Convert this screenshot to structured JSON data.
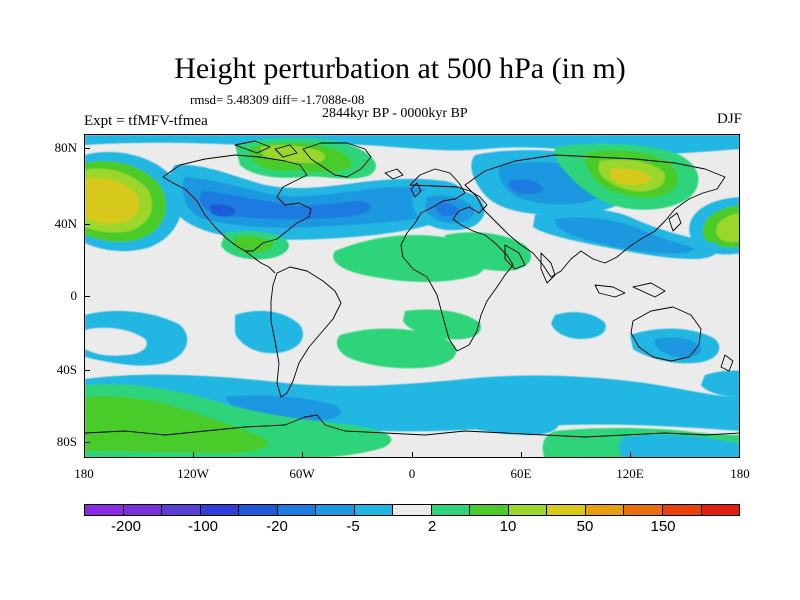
{
  "title": "Height perturbation at 500 hPa (in m)",
  "stats": "rmsd= 5.48309 diff= -1.7088e-08",
  "period": "2844kyr BP - 0000kyr BP",
  "experiment": "Expt = tfMFV-tfmea",
  "season": "DJF",
  "y_ticks": [
    "80N",
    "40N",
    "0",
    "40S",
    "80S"
  ],
  "x_ticks": [
    "180",
    "120W",
    "60W",
    "0",
    "60E",
    "120E",
    "180"
  ],
  "colorbar": {
    "colors": [
      "#8a2be2",
      "#7b30d8",
      "#5a3fd0",
      "#2f3fd8",
      "#1e5ad8",
      "#1f7ae0",
      "#1f98e0",
      "#21b6e2",
      "#ebebeb",
      "#2ed47a",
      "#4acb2a",
      "#9bd62a",
      "#d7c81a",
      "#e89e12",
      "#e8700f",
      "#e8430c",
      "#e01f0f"
    ],
    "labels": [
      "-200",
      "-100",
      "-20",
      "-5",
      "2",
      "10",
      "50",
      "150"
    ]
  },
  "chart_data": {
    "type": "heatmap",
    "title": "Height perturbation at 500 hPa (in m)",
    "variable": "500 hPa geopotential height difference",
    "units": "m",
    "lon_range": [
      -180,
      180
    ],
    "lat_range": [
      -90,
      90
    ],
    "legend_levels": [
      -200,
      -100,
      -20,
      -5,
      2,
      10,
      50,
      150
    ],
    "features": [
      {
        "region": "North Pacific",
        "sign": "positive",
        "approx_max_m": 50
      },
      {
        "region": "North America / North Atlantic",
        "sign": "negative",
        "approx_min_m": -20
      },
      {
        "region": "Europe",
        "sign": "negative",
        "approx_min_m": -20
      },
      {
        "region": "Siberia / northeast Asia",
        "sign": "positive",
        "approx_max_m": 50
      },
      {
        "region": "Subtropical north Atlantic / Africa",
        "sign": "positive",
        "approx_max_m": 10
      },
      {
        "region": "Southern Ocean ~50S",
        "sign": "negative",
        "approx_min_m": -5
      },
      {
        "region": "Antarctica",
        "sign": "positive",
        "approx_max_m": 10
      }
    ]
  }
}
